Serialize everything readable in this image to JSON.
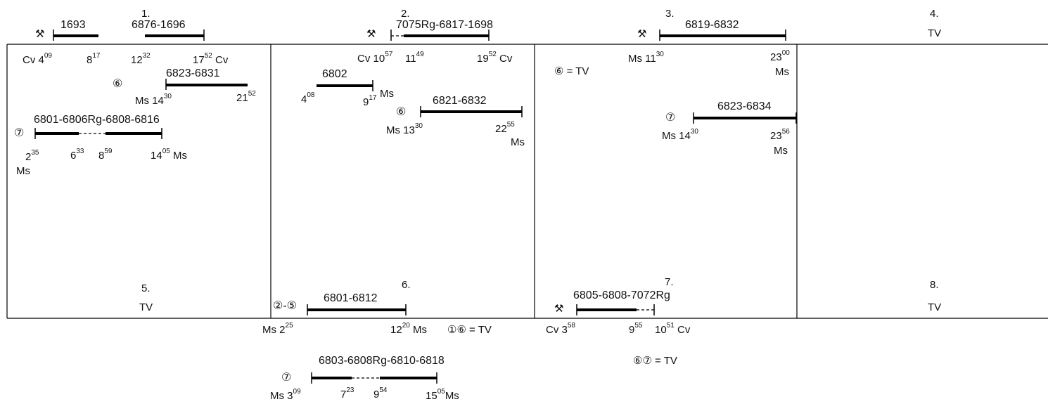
{
  "blocks": [
    {
      "num": "1.",
      "top_route": "1693",
      "top_route_2": "6876-1696",
      "top_t1": "Cv 4",
      "top_t1s": "09",
      "top_t2": "8",
      "top_t2s": "17",
      "top_t3": "12",
      "top_t3s": "32",
      "top_t4": "17",
      "top_t4s": "52",
      "top_t4b": " Cv",
      "r6": "6823-6831",
      "r6_circle": "⑥",
      "r6_t1": "Ms  14",
      "r6_t1s": "30",
      "r6_t2": "21",
      "r6_t2s": "52",
      "r7": "6801-6806Rg-6808-6816",
      "r7_circle": "⑦",
      "r7_t1": "2",
      "r7_t1s": "35",
      "r7_t1b": "Ms",
      "r7_t2": "6",
      "r7_t2s": "33",
      "r7_t3": "8",
      "r7_t3s": "59",
      "r7_t4": "14",
      "r7_t4s": "05",
      "r7_t4b": " Ms"
    },
    {
      "num": "2.",
      "top_route": "7075Rg-6817-1698",
      "top_t1": "Cv 10",
      "top_t1s": "57",
      "top_t2": "11",
      "top_t2s": "49",
      "top_t3": "19",
      "top_t3s": "52",
      "top_t3b": " Cv",
      "r1": "6802",
      "r1_t1": "4",
      "r1_t1s": "08",
      "r1_t2": "9",
      "r1_t2s": "17",
      "r1_t2b": " Ms",
      "r6": "6821-6832",
      "r6_circle": "⑥",
      "r6_t1": "Ms 13",
      "r6_t1s": "30",
      "r6_t2": "22",
      "r6_t2s": "55",
      "r6_t2b": "Ms"
    },
    {
      "num": "3.",
      "top_route": "6819-6832",
      "note": "⑥ = TV",
      "top_t1": "Ms 11",
      "top_t1s": "30",
      "top_t2": "23",
      "top_t2s": "00",
      "top_t2b": "Ms",
      "r7": "6823-6834",
      "r7_circle": "⑦",
      "r7_t1": "Ms 14",
      "r7_t1s": "30",
      "r7_t2": "23",
      "r7_t2s": "56",
      "r7_t2b": "Ms"
    },
    {
      "num": "4.",
      "text": "TV"
    },
    {
      "num": "5.",
      "text": "TV"
    },
    {
      "num": "6.",
      "circle": "②-⑤",
      "route": "6801-6812",
      "t1": "Ms 2",
      "t1s": "25",
      "t2": "12",
      "t2s": "20",
      "t2b": " Ms",
      "note": "①⑥  =  TV",
      "r7": "6803-6808Rg-6810-6818",
      "r7_circle": "⑦",
      "r7_t1": "Ms  3",
      "r7_t1s": "09",
      "r7_t2": "7",
      "r7_t2s": "23",
      "r7_t3": "9",
      "r7_t3s": "54",
      "r7_t4": "15",
      "r7_t4s": "05",
      "r7_t4b": "Ms"
    },
    {
      "num": "7.",
      "route": "6805-6808-7072Rg",
      "t1": "Cv  3",
      "t1s": "58",
      "t2": "9",
      "t2s": "55",
      "t3": "10",
      "t3s": "51",
      "t3b": " Cv",
      "note": "⑥⑦  =  TV"
    },
    {
      "num": "8.",
      "text": "TV"
    }
  ],
  "icons": [
    "hammer-pick-icon"
  ]
}
